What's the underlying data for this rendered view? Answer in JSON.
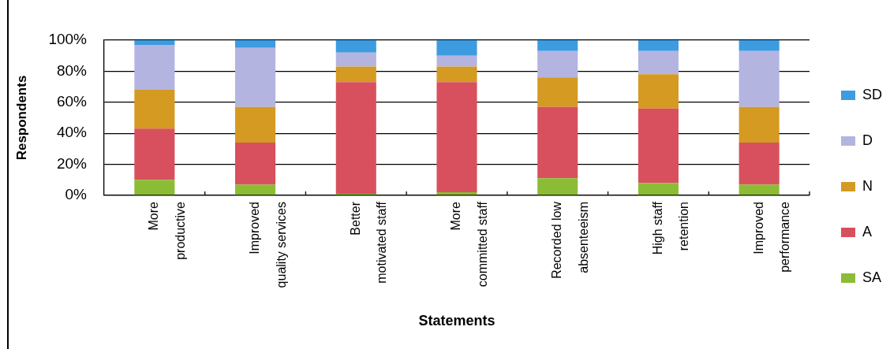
{
  "chart_data": {
    "type": "bar",
    "stacked": true,
    "xlabel": "Statements",
    "ylabel": "Respondents",
    "categories": [
      "More productive",
      "Improved quality services",
      "Better motivated staff",
      "More committed staff",
      "Recorded low absenteeism",
      "High staff retention",
      "Improved performance"
    ],
    "series": [
      {
        "name": "SA",
        "color": "#8cbc36",
        "values": [
          10,
          7,
          1,
          2,
          11,
          8,
          7
        ]
      },
      {
        "name": "A",
        "color": "#d8505e",
        "values": [
          33,
          27,
          72,
          71,
          46,
          48,
          27
        ]
      },
      {
        "name": "N",
        "color": "#d49a22",
        "values": [
          25,
          23,
          10,
          10,
          19,
          22,
          23
        ]
      },
      {
        "name": "D",
        "color": "#b4b4e0",
        "values": [
          29,
          38,
          9,
          7,
          17,
          15,
          36
        ]
      },
      {
        "name": "SD",
        "color": "#3d9be0",
        "values": [
          3,
          5,
          8,
          10,
          7,
          7,
          7
        ]
      }
    ],
    "ylim": [
      0,
      100
    ],
    "yticks": [
      {
        "value": 0,
        "label": "0%"
      },
      {
        "value": 20,
        "label": "20%"
      },
      {
        "value": 40,
        "label": "40%"
      },
      {
        "value": 60,
        "label": "60%"
      },
      {
        "value": 80,
        "label": "80%"
      },
      {
        "value": 100,
        "label": "100%"
      }
    ],
    "grid": "y",
    "legend": "right"
  }
}
